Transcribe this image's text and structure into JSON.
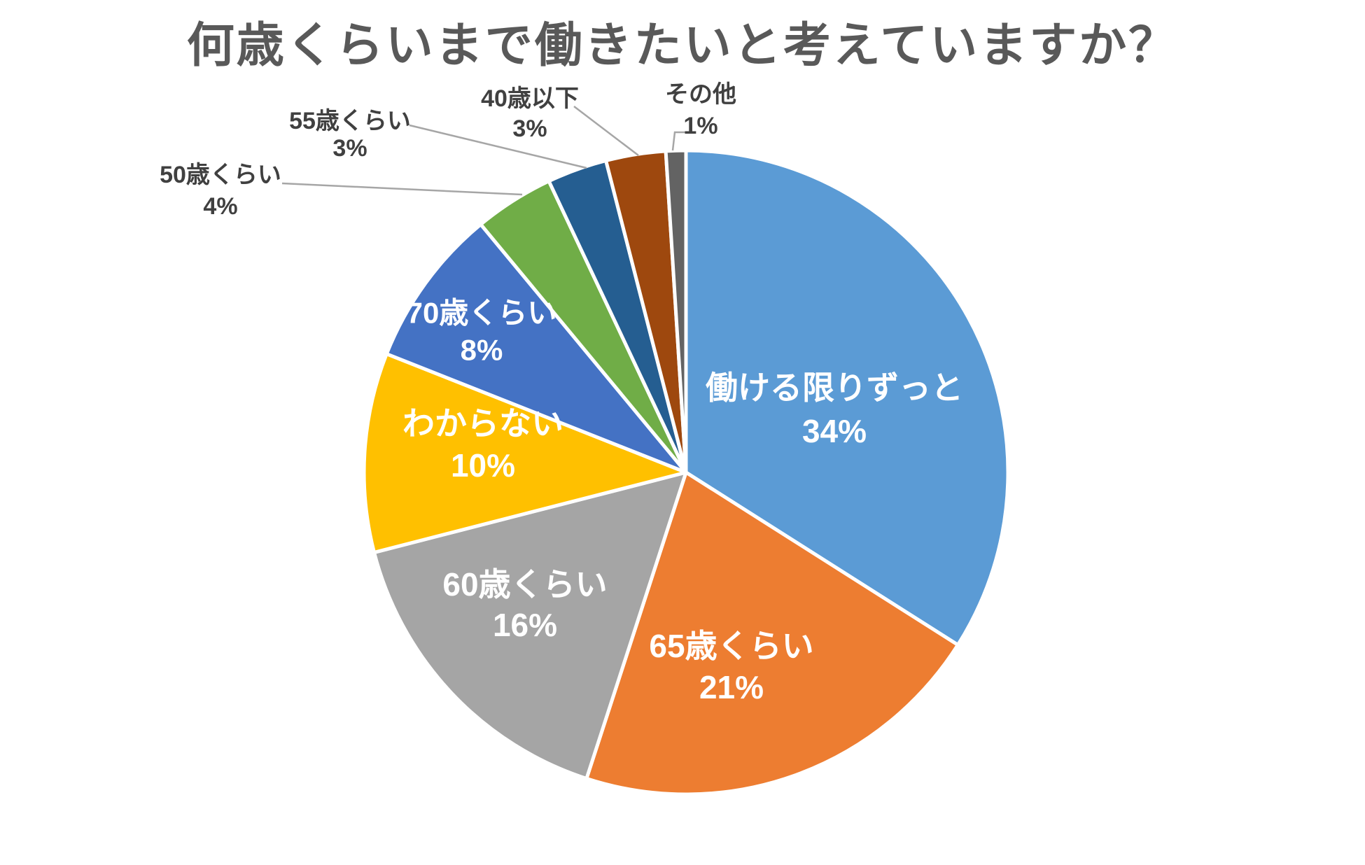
{
  "chart_data": {
    "type": "pie",
    "title": "何歳くらいまで働きたいと考えていますか？",
    "direction": "clockwise",
    "start_angle_deg": 0,
    "legend": "none",
    "data_label_style": "category name + percent",
    "leader_lines": true,
    "background_color": "#FFFFFF",
    "title_color": "#595959",
    "outside_label_color": "#404040",
    "inside_label_color": "#FFFFFF",
    "leader_line_color": "#A6A6A6",
    "slices": [
      {
        "label": "働ける限りずっと",
        "pct": 34,
        "color": "#5B9BD5",
        "label_position": "inside"
      },
      {
        "label": "65歳くらい",
        "pct": 21,
        "color": "#ED7D31",
        "label_position": "inside"
      },
      {
        "label": "60歳くらい",
        "pct": 16,
        "color": "#A5A5A5",
        "label_position": "inside"
      },
      {
        "label": "わからない",
        "pct": 10,
        "color": "#FFC000",
        "label_position": "inside"
      },
      {
        "label": "70歳くらい",
        "pct": 8,
        "color": "#4472C4",
        "label_position": "inside"
      },
      {
        "label": "50歳くらい",
        "pct": 4,
        "color": "#70AD47",
        "label_position": "outside"
      },
      {
        "label": "55歳くらい",
        "pct": 3,
        "color": "#255E91",
        "label_position": "outside"
      },
      {
        "label": "40歳以下",
        "pct": 3,
        "color": "#9E480E",
        "label_position": "outside"
      },
      {
        "label": "その他",
        "pct": 1,
        "color": "#636363",
        "label_position": "outside"
      }
    ]
  }
}
